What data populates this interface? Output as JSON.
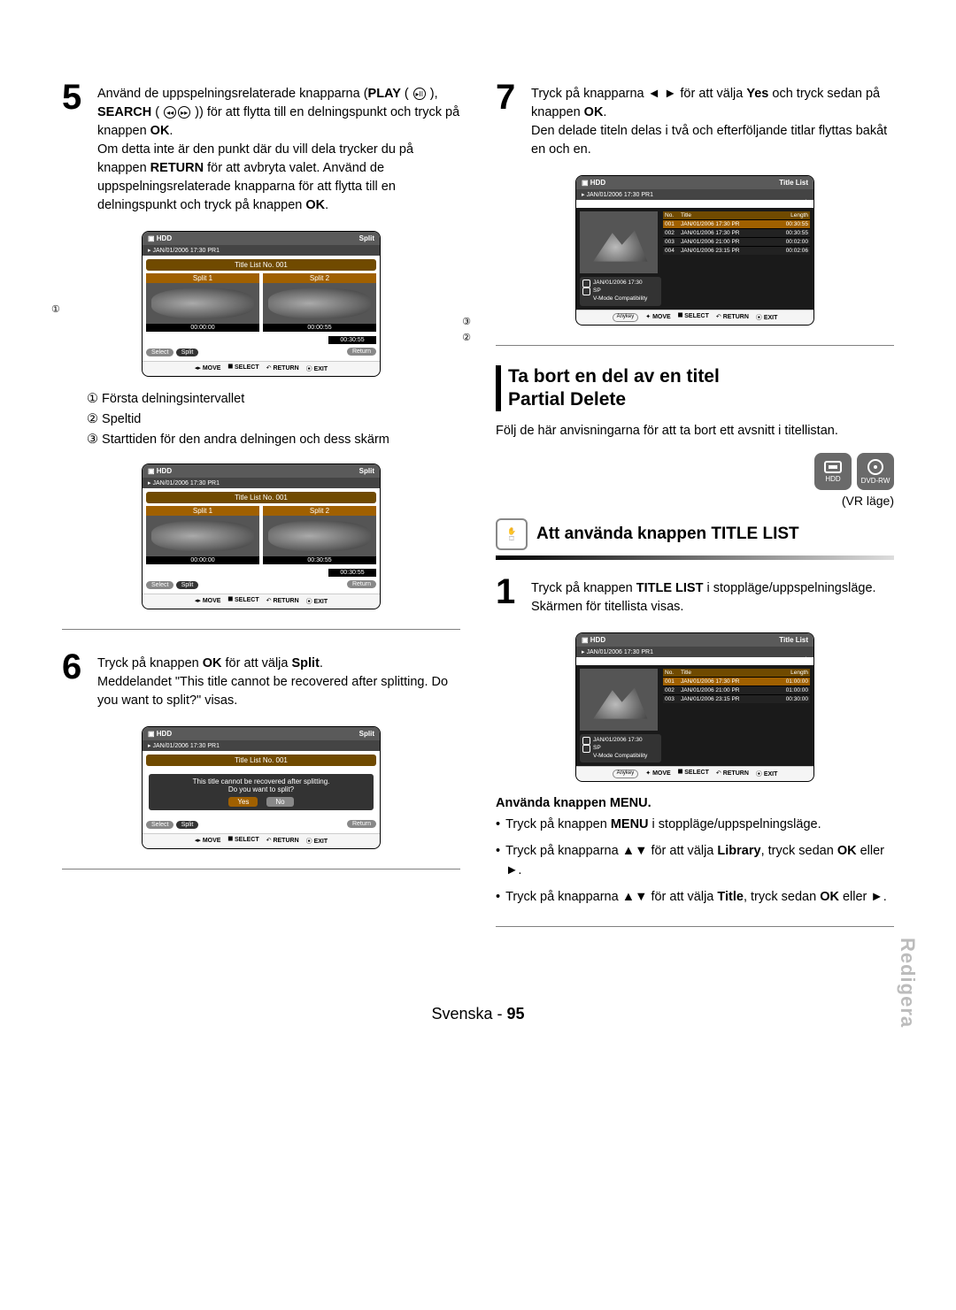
{
  "page": {
    "language_label": "Svenska",
    "page_number": "95",
    "side_tab": "Redigera"
  },
  "col_left": {
    "step5": {
      "num": "5",
      "text_a": "Använd de uppspelningsrelaterade knapparna (",
      "play": "PLAY",
      "text_b": " ( ",
      "text_c": " ), ",
      "search": "SEARCH",
      "text_d": " ( ",
      "text_e": " )) för att flytta till en delningspunkt och tryck på knappen ",
      "ok1": "OK",
      "text_f": ".",
      "para2_a": "Om detta inte är den punkt där du vill dela trycker du på knappen ",
      "return": "RETURN",
      "para2_b": " för att avbryta valet. Använd de uppspelningsrelaterade knapparna för att flytta till en delningspunkt och tryck på knappen ",
      "ok2": "OK",
      "para2_c": "."
    },
    "shot1": {
      "hdr_left": "HDD",
      "hdr_right": "Split",
      "sub": "JAN/01/2006 17:30 PR1",
      "bar": "Title List No. 001",
      "split1": "Split 1",
      "split2": "Split 2",
      "t1": "00:00:00",
      "t2": "00:00:55",
      "play": "00:30:55",
      "select": "Select",
      "split": "Split",
      "return": "Return",
      "nav_move": "MOVE",
      "nav_select": "SELECT",
      "nav_return": "RETURN",
      "nav_exit": "EXIT",
      "call1": "①",
      "call2": "②",
      "call3": "③"
    },
    "legend": {
      "l1": "① Första delningsintervallet",
      "l2": "② Speltid",
      "l3": "③ Starttiden för den andra delningen och dess skärm"
    },
    "shot2": {
      "hdr_left": "HDD",
      "hdr_right": "Split",
      "sub": "JAN/01/2006 17:30 PR1",
      "bar": "Title List No. 001",
      "split1": "Split 1",
      "split2": "Split 2",
      "t1": "00:00:00",
      "t2": "00:30:55",
      "play": "00:30:55",
      "select": "Select",
      "split": "Split",
      "return": "Return",
      "nav_move": "MOVE",
      "nav_select": "SELECT",
      "nav_return": "RETURN",
      "nav_exit": "EXIT"
    },
    "step6": {
      "num": "6",
      "a": "Tryck på knappen ",
      "ok": "OK",
      "b": " för att välja ",
      "split": "Split",
      "c": ".",
      "d": "Meddelandet \"This title cannot be recovered after splitting. Do you want to split?\" visas."
    },
    "shot3": {
      "hdr_left": "HDD",
      "hdr_right": "Split",
      "sub": "JAN/01/2006 17:30 PR1",
      "bar": "Title List No. 001",
      "dlg1": "This title cannot be recovered after splitting.",
      "dlg2": "Do you want to split?",
      "yes": "Yes",
      "no": "No",
      "select": "Select",
      "split": "Split",
      "return": "Return",
      "nav_move": "MOVE",
      "nav_select": "SELECT",
      "nav_return": "RETURN",
      "nav_exit": "EXIT"
    }
  },
  "col_right": {
    "step7": {
      "num": "7",
      "a": "Tryck på knapparna ◄ ► för att välja ",
      "yes": "Yes",
      "b": " och tryck sedan på knappen ",
      "ok": "OK",
      "c": ".",
      "d": "Den delade titeln delas i två och efterföljande titlar flyttas bakåt en och en."
    },
    "shot4": {
      "hdr_left": "HDD",
      "hdr_right": "Title List",
      "sub": "JAN/01/2006 17:30 PR1",
      "corner": "1/4",
      "th_no": "No.",
      "th_title": "Title",
      "th_len": "Length",
      "rows": [
        {
          "no": "001",
          "title": "JAN/01/2006 17:30 PR",
          "len": "00:30:55"
        },
        {
          "no": "002",
          "title": "JAN/01/2006 17:30 PR",
          "len": "00:30:55"
        },
        {
          "no": "003",
          "title": "JAN/01/2006 21:00 PR",
          "len": "00:02:00"
        },
        {
          "no": "004",
          "title": "JAN/01/2006 23:15 PR",
          "len": "00:02:06"
        }
      ],
      "meta_date": "JAN/01/2006 17:30",
      "meta_sp": "SP",
      "meta_v": "V-Mode Compatibility",
      "anykey": "Anykey",
      "nav_move": "MOVE",
      "nav_select": "SELECT",
      "nav_return": "RETURN",
      "nav_exit": "EXIT"
    },
    "section": {
      "title_a": "Ta bort en del av en titel",
      "title_b": "Partial Delete",
      "desc": "Följ de här anvisningarna för att ta bort ett avsnitt i titellistan."
    },
    "media": {
      "hdd": "HDD",
      "dvdrw": "DVD-RW",
      "vr": "(VR läge)"
    },
    "subsection": {
      "title": "Att använda knappen TITLE LIST"
    },
    "step1": {
      "num": "1",
      "a": "Tryck på knappen ",
      "tl": "TITLE LIST",
      "b": " i stoppläge/uppspelningsläge.",
      "c": "Skärmen för titellista visas."
    },
    "shot5": {
      "hdr_left": "HDD",
      "hdr_right": "Title List",
      "sub": "JAN/01/2006 17:30 PR1",
      "corner": "1/3",
      "th_no": "No.",
      "th_title": "Title",
      "th_len": "Length",
      "rows": [
        {
          "no": "001",
          "title": "JAN/01/2006 17:30 PR",
          "len": "01:00:00"
        },
        {
          "no": "002",
          "title": "JAN/01/2006 21:00 PR",
          "len": "01:00:00"
        },
        {
          "no": "003",
          "title": "JAN/01/2006 23:15 PR",
          "len": "00:30:00"
        }
      ],
      "meta_date": "JAN/01/2006 17:30",
      "meta_sp": "SP",
      "meta_v": "V-Mode Compatibility",
      "anykey": "Anykey",
      "nav_move": "MOVE",
      "nav_select": "SELECT",
      "nav_return": "RETURN",
      "nav_exit": "EXIT"
    },
    "menu_note": {
      "title": "Använda knappen MENU.",
      "b1_a": "Tryck på knappen ",
      "b1_menu": "MENU",
      "b1_b": " i stoppläge/uppspelningsläge.",
      "b2_a": "Tryck på knapparna ▲▼ för att välja ",
      "b2_lib": "Library",
      "b2_b": ", tryck sedan ",
      "b2_ok": "OK",
      "b2_c": " eller ►.",
      "b3_a": "Tryck på knapparna ▲▼ för att välja ",
      "b3_title": "Title",
      "b3_b": ", tryck sedan ",
      "b3_ok": "OK",
      "b3_c": " eller ►."
    }
  }
}
